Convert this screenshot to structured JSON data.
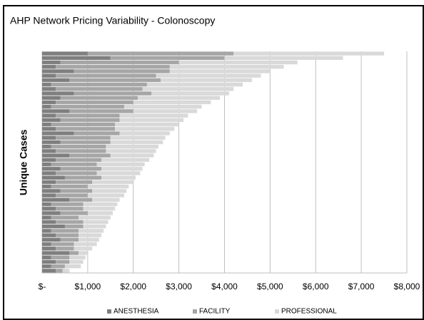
{
  "chart_data": {
    "type": "stacked_barh",
    "title": "AHP Network Pricing Variability - Colonoscopy",
    "y_label": "Unique Cases",
    "categories": [
      null,
      null,
      null,
      null,
      null,
      null,
      null,
      null,
      null,
      null,
      null,
      null,
      null,
      null,
      null,
      null,
      null,
      null,
      null,
      null,
      null,
      null,
      null,
      null,
      null,
      null,
      null,
      null,
      null,
      null,
      null,
      null,
      null,
      null,
      null,
      null,
      null,
      null,
      null,
      null,
      null,
      null,
      null,
      null,
      null,
      null,
      null,
      null,
      null,
      null
    ],
    "series": [
      {
        "name": "ANESTHESIA",
        "color": "#7f7f7f",
        "values": [
          1000,
          1500,
          400,
          300,
          700,
          300,
          600,
          200,
          300,
          700,
          400,
          300,
          200,
          600,
          300,
          400,
          200,
          300,
          700,
          300,
          400,
          200,
          300,
          600,
          300,
          200,
          400,
          300,
          500,
          300,
          200,
          400,
          300,
          600,
          200,
          300,
          400,
          200,
          300,
          500,
          200,
          300,
          400,
          200,
          300,
          600,
          200,
          300,
          200,
          300
        ]
      },
      {
        "name": "FACILITY",
        "color": "#a6a6a6",
        "values": [
          3200,
          2500,
          2600,
          2500,
          2100,
          2200,
          2000,
          2100,
          1900,
          1700,
          1700,
          1700,
          1600,
          1400,
          1400,
          1300,
          1400,
          1300,
          1000,
          1200,
          1100,
          1200,
          1100,
          900,
          1000,
          1000,
          900,
          900,
          800,
          800,
          800,
          700,
          700,
          500,
          700,
          600,
          600,
          600,
          600,
          400,
          600,
          500,
          400,
          500,
          400,
          200,
          400,
          300,
          300,
          150
        ]
      },
      {
        "name": "PROFESSIONAL",
        "color": "#d9d9d9",
        "values": [
          3300,
          2600,
          2600,
          2500,
          2200,
          2300,
          2000,
          2100,
          2000,
          1700,
          1800,
          1700,
          1700,
          1400,
          1500,
          1400,
          1400,
          1300,
          1100,
          1200,
          1150,
          1150,
          1100,
          950,
          1050,
          1050,
          900,
          950,
          750,
          900,
          900,
          750,
          800,
          600,
          750,
          700,
          550,
          700,
          550,
          500,
          550,
          500,
          450,
          500,
          400,
          200,
          350,
          300,
          350,
          150
        ]
      }
    ],
    "xlim": [
      0,
      8000
    ],
    "xticks": [
      {
        "value": 0,
        "label": "$-"
      },
      {
        "value": 1000,
        "label": "$1,000"
      },
      {
        "value": 2000,
        "label": "$2,000"
      },
      {
        "value": 3000,
        "label": "$3,000"
      },
      {
        "value": 4000,
        "label": "$4,000"
      },
      {
        "value": 5000,
        "label": "$5,000"
      },
      {
        "value": 6000,
        "label": "$6,000"
      },
      {
        "value": 7000,
        "label": "$7,000"
      },
      {
        "value": 8000,
        "label": "$8,000"
      }
    ],
    "grid": true,
    "legend": "bottom"
  }
}
